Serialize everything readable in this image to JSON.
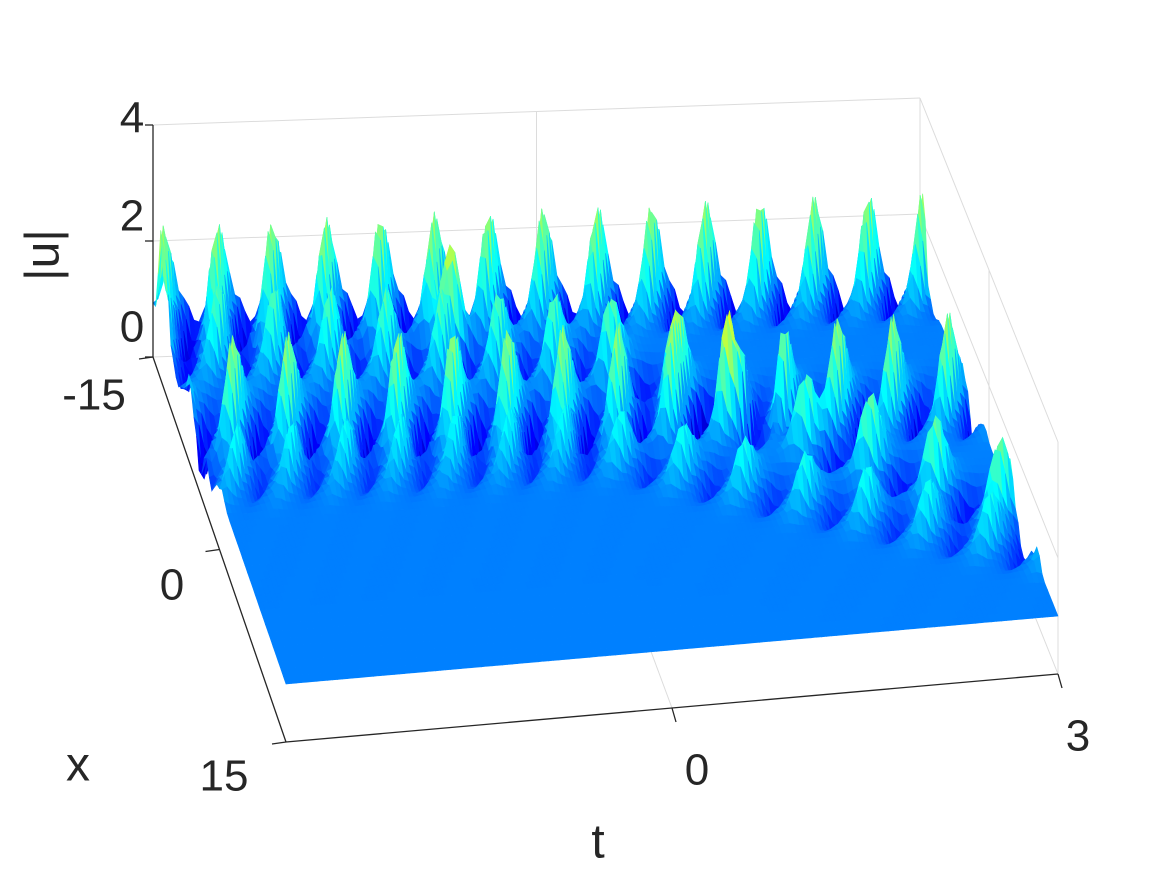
{
  "chart_data": {
    "type": "surface",
    "title": "",
    "xlabel": "t",
    "ylabel": "x",
    "zlabel": "|u|",
    "t_ticks": [
      "0",
      "3"
    ],
    "x_ticks": [
      "-15",
      "0",
      "15"
    ],
    "z_ticks": [
      "0",
      "2",
      "4"
    ],
    "tlim": [
      -3,
      3
    ],
    "xlim": [
      -15,
      15
    ],
    "zlim": [
      0,
      4
    ],
    "grid": true,
    "colormap": "jet",
    "background_level": 1.0,
    "wave_families": [
      {
        "name": "",
        "description_points_t_x": [
          [
            -2.9,
            -13.5
          ],
          [
            3.0,
            -14.0
          ]
        ],
        "peak_amplitude": 2.6
      },
      {
        "name": "",
        "description_points_t_x": [
          [
            -3.0,
            -11.0
          ],
          [
            0.3,
            -8.5
          ],
          [
            3.0,
            6.0
          ]
        ],
        "peak_amplitude": 2.2
      },
      {
        "name": "",
        "description_points_t_x": [
          [
            -3.0,
            -5.0
          ],
          [
            3.0,
            -3.5
          ]
        ],
        "peak_amplitude": 2.6
      },
      {
        "name": "",
        "description_points_t_x": [
          [
            0.0,
            -1.5
          ],
          [
            3.0,
            9.0
          ]
        ],
        "peak_amplitude": 1.8
      }
    ],
    "max_peak": {
      "t": -0.8,
      "x": -11.5,
      "value": 3.3
    }
  }
}
